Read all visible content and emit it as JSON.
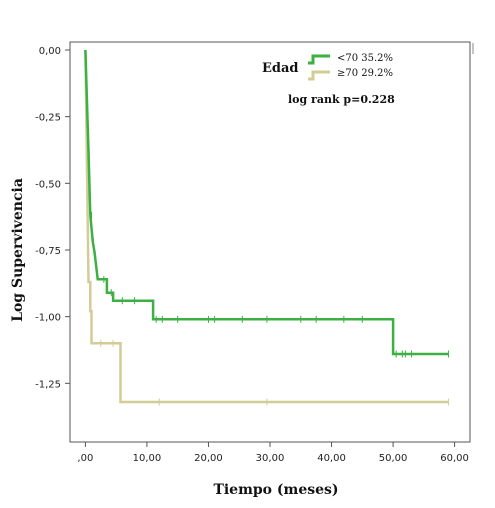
{
  "chart_data": {
    "type": "line",
    "step": true,
    "xlabel": "Tiempo (meses)",
    "ylabel": "Log Supervivencia",
    "xlim": [
      -2.5,
      62.5
    ],
    "ylim": [
      -1.47,
      0.03
    ],
    "x_ticks": [
      0,
      10,
      20,
      30,
      40,
      50,
      60
    ],
    "x_tick_labels": [
      ",00",
      "10,00",
      "20,00",
      "30,00",
      "40,00",
      "50,00",
      "60,00"
    ],
    "y_ticks": [
      0,
      -0.25,
      -0.5,
      -0.75,
      -1.0,
      -1.25
    ],
    "y_tick_labels": [
      "0,00",
      "-0,25",
      "-0,50",
      "-0,75",
      "-1,00",
      "-1,25"
    ],
    "grid": false,
    "legend": {
      "title": "Edad",
      "position": "top-center",
      "entries": [
        "<70  35.2%",
        "≥70  29.2%"
      ]
    },
    "annotation": "log rank p=0.228",
    "series": [
      {
        "name": "<70  35.2%",
        "color": "#3cb043",
        "points": [
          [
            0,
            0
          ],
          [
            0.5,
            -0.38
          ],
          [
            0.8,
            -0.62
          ],
          [
            1.2,
            -0.72
          ],
          [
            1.5,
            -0.76
          ],
          [
            2.0,
            -0.86
          ],
          [
            3.5,
            -0.86
          ],
          [
            3.5,
            -0.91
          ],
          [
            4.5,
            -0.91
          ],
          [
            4.5,
            -0.94
          ],
          [
            11.0,
            -0.94
          ],
          [
            11.0,
            -1.01
          ],
          [
            50.0,
            -1.01
          ],
          [
            50.0,
            -1.14
          ],
          [
            59.0,
            -1.14
          ]
        ],
        "censored_x": [
          0.6,
          1.0,
          1.3,
          3.0,
          4.2,
          6.0,
          8.0,
          11.5,
          12.5,
          15.0,
          20.0,
          21.0,
          25.5,
          29.5,
          35.0,
          37.5,
          42.0,
          45.0,
          50.5,
          51.5,
          52.0,
          53.0,
          59.0
        ]
      },
      {
        "name": "≥70  29.2%",
        "color": "#d2cc96",
        "points": [
          [
            0,
            0
          ],
          [
            0.3,
            -0.5
          ],
          [
            0.5,
            -0.87
          ],
          [
            0.8,
            -0.87
          ],
          [
            0.8,
            -0.98
          ],
          [
            1.0,
            -0.98
          ],
          [
            1.0,
            -1.1
          ],
          [
            5.7,
            -1.1
          ],
          [
            5.7,
            -1.32
          ],
          [
            59.0,
            -1.32
          ]
        ],
        "censored_x": [
          2.5,
          4.5,
          12.0,
          29.5,
          59.0
        ]
      }
    ]
  }
}
